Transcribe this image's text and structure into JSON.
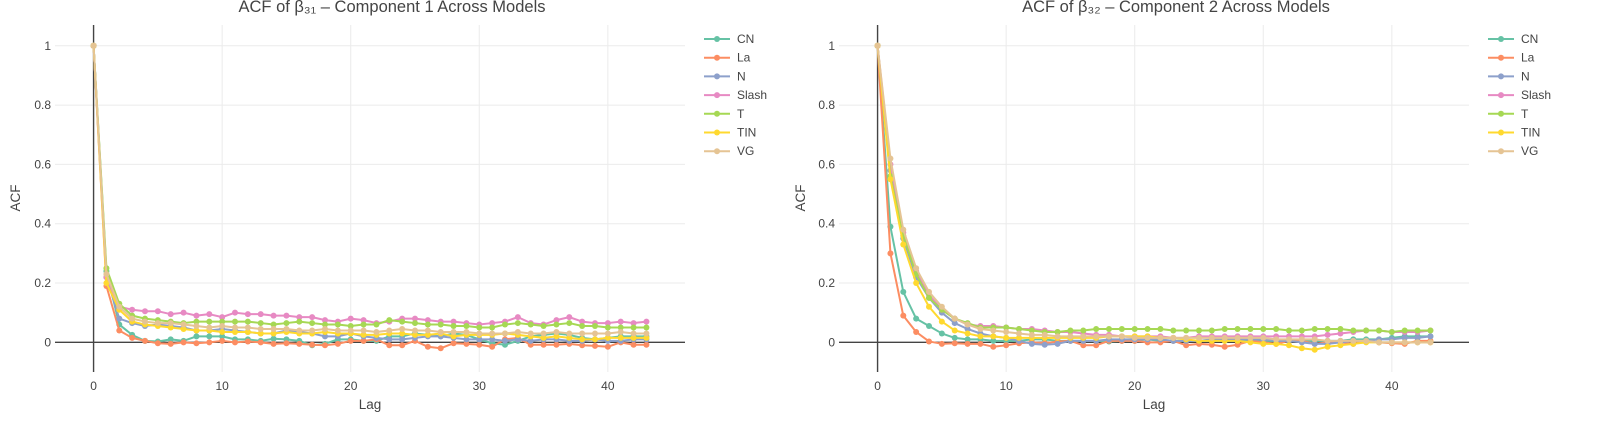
{
  "chart_data": [
    {
      "type": "line",
      "title": "ACF of β₃₁ – Component 1 Across Models",
      "xlabel": "Lag",
      "ylabel": "ACF",
      "xlim": [
        -3,
        46
      ],
      "ylim": [
        -0.1,
        1.07
      ],
      "xticks": [
        0,
        10,
        20,
        30,
        40
      ],
      "yticks": [
        0,
        0.2,
        0.4,
        0.6,
        0.8,
        1
      ],
      "ytick_labels": [
        "0",
        "0.2",
        "0.4",
        "0.6",
        "0.8",
        "1"
      ],
      "grid": true,
      "legend_position": "right",
      "series": [
        {
          "name": "CN",
          "color": "#66c2a5",
          "values": [
            1,
            0.24,
            0.06,
            0.025,
            0.005,
            0.003,
            0.01,
            0.005,
            0.02,
            0.02,
            0.02,
            0.01,
            0.01,
            0.005,
            0.012,
            0.01,
            0.005,
            -0.01,
            -0.005,
            0.01,
            0.01,
            0.005,
            0.005,
            0.02,
            0.02,
            0.03,
            0.025,
            0.02,
            0.03,
            0.025,
            0.01,
            -0.003,
            -0.008,
            0.005,
            0.02,
            0.025,
            0.03,
            0.025,
            0.015,
            0.01,
            0.015,
            0.02,
            0.02,
            0.02
          ]
        },
        {
          "name": "La",
          "color": "#fc8d62",
          "values": [
            1,
            0.19,
            0.04,
            0.015,
            0.005,
            -0.003,
            -0.005,
            0,
            -0.003,
            0,
            0.005,
            0,
            0.003,
            0,
            -0.005,
            -0.003,
            -0.005,
            -0.008,
            -0.01,
            -0.005,
            0.005,
            0.005,
            0.01,
            -0.01,
            -0.01,
            0.005,
            -0.015,
            -0.02,
            -0.003,
            -0.005,
            -0.008,
            -0.015,
            0.01,
            0.015,
            -0.008,
            -0.008,
            -0.008,
            -0.005,
            -0.01,
            -0.012,
            -0.015,
            0,
            -0.008,
            -0.008
          ]
        },
        {
          "name": "N",
          "color": "#8da0cb",
          "values": [
            1,
            0.22,
            0.08,
            0.065,
            0.055,
            0.06,
            0.055,
            0.05,
            0.04,
            0.04,
            0.045,
            0.04,
            0.035,
            0.03,
            0.03,
            0.04,
            0.035,
            0.03,
            0.02,
            0.02,
            0.03,
            0.02,
            0.015,
            0.01,
            0.01,
            0.015,
            0.02,
            0.02,
            0.015,
            0.01,
            0.01,
            0.01,
            0.005,
            0.01,
            0.005,
            0.01,
            0.01,
            0.005,
            0.005,
            0.01,
            0.005,
            0.005,
            0.01,
            0.01
          ]
        },
        {
          "name": "Slash",
          "color": "#e78ac3",
          "values": [
            1,
            0.22,
            0.12,
            0.11,
            0.105,
            0.105,
            0.095,
            0.1,
            0.09,
            0.095,
            0.085,
            0.1,
            0.095,
            0.095,
            0.09,
            0.09,
            0.085,
            0.085,
            0.075,
            0.07,
            0.08,
            0.075,
            0.065,
            0.07,
            0.08,
            0.08,
            0.075,
            0.07,
            0.07,
            0.065,
            0.06,
            0.065,
            0.07,
            0.085,
            0.065,
            0.06,
            0.075,
            0.085,
            0.07,
            0.065,
            0.065,
            0.07,
            0.065,
            0.07
          ]
        },
        {
          "name": "T",
          "color": "#a6d854",
          "values": [
            1,
            0.25,
            0.13,
            0.09,
            0.08,
            0.075,
            0.07,
            0.065,
            0.07,
            0.07,
            0.07,
            0.07,
            0.07,
            0.065,
            0.06,
            0.065,
            0.07,
            0.065,
            0.06,
            0.06,
            0.055,
            0.06,
            0.06,
            0.075,
            0.07,
            0.065,
            0.06,
            0.06,
            0.055,
            0.055,
            0.05,
            0.05,
            0.06,
            0.065,
            0.06,
            0.055,
            0.06,
            0.065,
            0.055,
            0.055,
            0.05,
            0.05,
            0.05,
            0.05
          ]
        },
        {
          "name": "TIN",
          "color": "#ffd92f",
          "values": [
            1,
            0.2,
            0.11,
            0.07,
            0.06,
            0.055,
            0.05,
            0.045,
            0.04,
            0.04,
            0.035,
            0.035,
            0.035,
            0.03,
            0.03,
            0.035,
            0.03,
            0.03,
            0.035,
            0.03,
            0.03,
            0.025,
            0.025,
            0.03,
            0.03,
            0.025,
            0.025,
            0.03,
            0.02,
            0.025,
            0.025,
            0.025,
            0.03,
            0.025,
            0.02,
            0.015,
            0.02,
            0.015,
            0.01,
            0.01,
            0.015,
            0.015,
            0.015,
            0.015
          ]
        },
        {
          "name": "VG",
          "color": "#e5c494",
          "values": [
            1,
            0.23,
            0.12,
            0.08,
            0.07,
            0.065,
            0.065,
            0.06,
            0.055,
            0.05,
            0.055,
            0.05,
            0.05,
            0.045,
            0.045,
            0.045,
            0.04,
            0.04,
            0.045,
            0.04,
            0.04,
            0.04,
            0.035,
            0.04,
            0.045,
            0.04,
            0.04,
            0.035,
            0.035,
            0.035,
            0.03,
            0.03,
            0.03,
            0.035,
            0.03,
            0.03,
            0.035,
            0.03,
            0.03,
            0.03,
            0.03,
            0.035,
            0.03,
            0.03
          ]
        }
      ]
    },
    {
      "type": "line",
      "title": "ACF of β₃₂ – Component 2 Across Models",
      "xlabel": "Lag",
      "ylabel": "ACF",
      "xlim": [
        -3,
        46
      ],
      "ylim": [
        -0.1,
        1.07
      ],
      "xticks": [
        0,
        10,
        20,
        30,
        40
      ],
      "yticks": [
        0,
        0.2,
        0.4,
        0.6,
        0.8,
        1
      ],
      "ytick_labels": [
        "0",
        "0.2",
        "0.4",
        "0.6",
        "0.8",
        "1"
      ],
      "grid": true,
      "legend_position": "right",
      "series": [
        {
          "name": "CN",
          "color": "#66c2a5",
          "values": [
            1,
            0.39,
            0.17,
            0.08,
            0.055,
            0.03,
            0.015,
            0.01,
            0.01,
            0.005,
            0.005,
            0.005,
            0.01,
            0.01,
            0.005,
            0.005,
            0.005,
            0.005,
            0.003,
            0.005,
            0.005,
            0.01,
            0.005,
            0.005,
            0.005,
            0.005,
            0.005,
            0.005,
            0.005,
            0.005,
            0.005,
            0.005,
            0.005,
            0.005,
            0.005,
            0.005,
            0.005,
            0.01,
            0.01,
            0.01,
            0.015,
            0.02,
            0.02,
            0.02
          ]
        },
        {
          "name": "La",
          "color": "#fc8d62",
          "values": [
            1,
            0.3,
            0.09,
            0.035,
            0.003,
            -0.005,
            -0.003,
            -0.005,
            -0.005,
            -0.015,
            -0.01,
            -0.003,
            0,
            -0.003,
            0.003,
            0.005,
            -0.01,
            -0.01,
            0.005,
            0.005,
            0.005,
            0,
            0,
            0.005,
            -0.01,
            -0.005,
            -0.008,
            -0.015,
            -0.008,
            0.005,
            0,
            -0.005,
            0.005,
            0.005,
            -0.005,
            0,
            0,
            -0.005,
            0.005,
            0,
            -0.003,
            -0.005,
            0.005,
            0.005
          ]
        },
        {
          "name": "N",
          "color": "#8da0cb",
          "values": [
            1,
            0.58,
            0.35,
            0.22,
            0.15,
            0.1,
            0.065,
            0.045,
            0.03,
            0.02,
            0.015,
            0.005,
            -0.005,
            -0.008,
            -0.005,
            0.005,
            0.005,
            0.005,
            0.01,
            0.01,
            0.01,
            0.01,
            0.01,
            0.005,
            0.005,
            0.005,
            0.01,
            0.01,
            0.01,
            0.01,
            0.01,
            0.005,
            0.005,
            0,
            -0.005,
            -0.005,
            0,
            0.005,
            0.005,
            0.01,
            0.01,
            0.015,
            0.015,
            0.02
          ]
        },
        {
          "name": "Slash",
          "color": "#e78ac3",
          "values": [
            1,
            0.6,
            0.37,
            0.24,
            0.16,
            0.11,
            0.08,
            0.06,
            0.055,
            0.055,
            0.05,
            0.045,
            0.045,
            0.04,
            0.035,
            0.035,
            0.03,
            0.025,
            0.025,
            0.02,
            0.02,
            0.02,
            0.02,
            0.015,
            0.015,
            0.02,
            0.02,
            0.02,
            0.02,
            0.02,
            0.02,
            0.02,
            0.02,
            0.02,
            0.02,
            0.025,
            0.03,
            0.035,
            0.04,
            0.04,
            0.035,
            0.035,
            0.035,
            0.04
          ]
        },
        {
          "name": "T",
          "color": "#a6d854",
          "values": [
            1,
            0.56,
            0.36,
            0.23,
            0.15,
            0.11,
            0.08,
            0.065,
            0.05,
            0.05,
            0.05,
            0.045,
            0.04,
            0.035,
            0.035,
            0.04,
            0.04,
            0.045,
            0.045,
            0.045,
            0.045,
            0.045,
            0.045,
            0.04,
            0.04,
            0.04,
            0.04,
            0.045,
            0.045,
            0.045,
            0.045,
            0.045,
            0.04,
            0.04,
            0.045,
            0.045,
            0.045,
            0.04,
            0.04,
            0.04,
            0.035,
            0.04,
            0.04,
            0.04
          ]
        },
        {
          "name": "TIN",
          "color": "#ffd92f",
          "values": [
            1,
            0.55,
            0.33,
            0.2,
            0.12,
            0.07,
            0.04,
            0.03,
            0.02,
            0.02,
            0.015,
            0.015,
            0.015,
            0.015,
            0.015,
            0.015,
            0.015,
            0.015,
            0.02,
            0.02,
            0.02,
            0.02,
            0.015,
            0.015,
            0.01,
            0.005,
            0.005,
            0.005,
            0.005,
            0,
            -0.005,
            -0.005,
            -0.01,
            -0.02,
            -0.025,
            -0.015,
            -0.01,
            -0.005,
            0,
            0,
            0,
            0,
            0,
            0
          ]
        },
        {
          "name": "VG",
          "color": "#e5c494",
          "values": [
            1,
            0.62,
            0.38,
            0.25,
            0.17,
            0.12,
            0.08,
            0.06,
            0.045,
            0.04,
            0.035,
            0.03,
            0.025,
            0.025,
            0.02,
            0.02,
            0.02,
            0.02,
            0.02,
            0.02,
            0.015,
            0.015,
            0.015,
            0.015,
            0.015,
            0.015,
            0.015,
            0.015,
            0.015,
            0.015,
            0.015,
            0.01,
            0.01,
            0.01,
            0.01,
            0.005,
            0.005,
            0.005,
            0.005,
            0,
            0,
            0,
            0,
            0
          ]
        }
      ]
    }
  ]
}
